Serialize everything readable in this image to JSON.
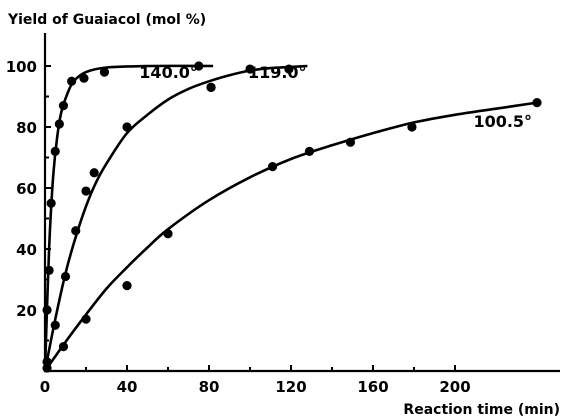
{
  "chart_data": {
    "type": "scatter",
    "ylabel": "Yield of Guaiacol (mol %)",
    "xlabel": "Reaction time (min)",
    "xlim": [
      0,
      255
    ],
    "ylim": [
      0,
      105
    ],
    "x_ticks": [
      0,
      40,
      80,
      120,
      160,
      200
    ],
    "y_ticks": [
      20,
      40,
      60,
      80,
      100
    ],
    "grid": false,
    "legend": "none",
    "series": [
      {
        "name": "140.0°",
        "x": [
          1,
          2,
          3,
          5,
          7,
          9,
          13,
          19,
          29,
          75,
          81
        ],
        "y": [
          20,
          33,
          55,
          72,
          81,
          87,
          95,
          96,
          98,
          100,
          93
        ],
        "fit": [
          [
            0,
            0
          ],
          [
            2,
            40
          ],
          [
            4,
            64
          ],
          [
            6,
            77
          ],
          [
            8,
            85
          ],
          [
            11,
            91
          ],
          [
            14,
            95
          ],
          [
            20,
            98
          ],
          [
            30,
            99.5
          ],
          [
            50,
            100
          ],
          [
            82,
            100
          ]
        ],
        "label_position": [
          46,
          96
        ]
      },
      {
        "name": "119.0°",
        "x": [
          1,
          5,
          10,
          15,
          20,
          24,
          40,
          81,
          100,
          119
        ],
        "y": [
          3,
          15,
          31,
          46,
          59,
          65,
          80,
          93,
          99,
          99
        ],
        "fit": [
          [
            0,
            0
          ],
          [
            5,
            17
          ],
          [
            10,
            32
          ],
          [
            15,
            44
          ],
          [
            20,
            54
          ],
          [
            25,
            62
          ],
          [
            30,
            68
          ],
          [
            40,
            78
          ],
          [
            50,
            84
          ],
          [
            60,
            89
          ],
          [
            70,
            92.5
          ],
          [
            80,
            95
          ],
          [
            90,
            97
          ],
          [
            100,
            98.5
          ],
          [
            110,
            99.3
          ],
          [
            120,
            99.7
          ],
          [
            128,
            100
          ]
        ],
        "label_position": [
          99,
          96
        ]
      },
      {
        "name": "100.5°",
        "x": [
          1,
          9,
          20,
          40,
          60,
          111,
          129,
          149,
          179,
          240
        ],
        "y": [
          1,
          8,
          17,
          28,
          45,
          67,
          72,
          75,
          80,
          88
        ],
        "fit": [
          [
            0,
            0
          ],
          [
            10,
            9.5
          ],
          [
            20,
            18.5
          ],
          [
            30,
            27
          ],
          [
            40,
            34
          ],
          [
            50,
            40.5
          ],
          [
            60,
            46.5
          ],
          [
            80,
            56
          ],
          [
            100,
            63.5
          ],
          [
            120,
            69.5
          ],
          [
            140,
            74
          ],
          [
            160,
            78
          ],
          [
            180,
            81.5
          ],
          [
            200,
            84
          ],
          [
            220,
            86
          ],
          [
            240,
            88
          ]
        ],
        "label_position": [
          209,
          80
        ]
      }
    ]
  }
}
